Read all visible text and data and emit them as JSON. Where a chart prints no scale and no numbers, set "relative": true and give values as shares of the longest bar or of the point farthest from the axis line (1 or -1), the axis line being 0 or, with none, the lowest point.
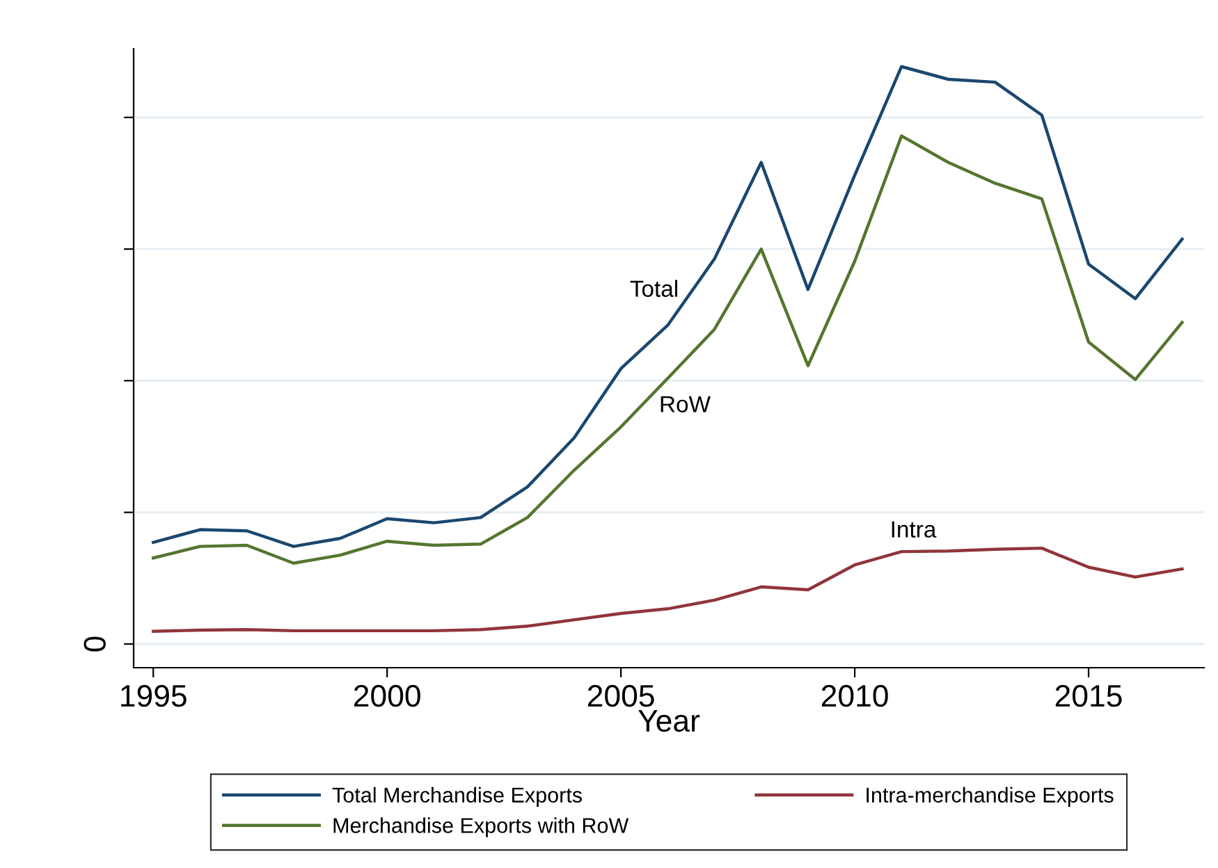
{
  "chart_data": {
    "type": "line",
    "relative": true,
    "xlabel": "Year",
    "x": [
      1995,
      1996,
      1997,
      1998,
      1999,
      2000,
      2001,
      2002,
      2003,
      2004,
      2005,
      2006,
      2007,
      2008,
      2009,
      2010,
      2011,
      2012,
      2013,
      2014,
      2015,
      2016,
      2017
    ],
    "series": [
      {
        "name": "Total Merchandise Exports",
        "color": "#1a476f",
        "values": [
          0.176,
          0.198,
          0.196,
          0.169,
          0.183,
          0.217,
          0.21,
          0.219,
          0.272,
          0.357,
          0.477,
          0.552,
          0.667,
          0.834,
          0.614,
          0.812,
          1,
          0.978,
          0.973,
          0.916,
          0.658,
          0.598,
          0.701
        ]
      },
      {
        "name": "Intra-merchandise Exports",
        "color": "#90353b",
        "values": [
          0.022,
          0.024,
          0.025,
          0.023,
          0.023,
          0.023,
          0.023,
          0.025,
          0.031,
          0.042,
          0.053,
          0.061,
          0.076,
          0.099,
          0.094,
          0.137,
          0.16,
          0.161,
          0.164,
          0.166,
          0.133,
          0.116,
          0.13
        ]
      },
      {
        "name": "Merchandise Exports with RoW",
        "color": "#55752f",
        "values": [
          0.149,
          0.169,
          0.171,
          0.14,
          0.154,
          0.178,
          0.171,
          0.173,
          0.219,
          0.301,
          0.376,
          0.46,
          0.545,
          0.684,
          0.482,
          0.663,
          0.88,
          0.834,
          0.798,
          0.771,
          0.523,
          0.458,
          0.557
        ]
      }
    ],
    "xlim": [
      1994.58,
      2017.47
    ],
    "xticks": [
      1995,
      2000,
      2005,
      2010,
      2015
    ],
    "annotations": [
      "0",
      "Total",
      "RoW",
      "Intra"
    ],
    "grid": "y",
    "legend": "bottom",
    "marker": "none",
    "line_style": "solid"
  }
}
